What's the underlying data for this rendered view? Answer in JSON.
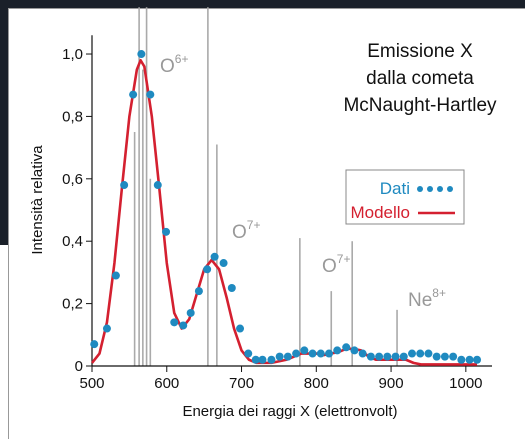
{
  "chart_data": {
    "type": "scatter-line",
    "title": [
      "Emissione X",
      "dalla cometa",
      "McNaught-Hartley"
    ],
    "xlabel": "Energia dei raggi X (elettronvolt)",
    "ylabel": "Intensità relativa",
    "xlim": [
      500,
      1035
    ],
    "ylim": [
      0,
      1.06
    ],
    "xticks": [
      500,
      600,
      700,
      800,
      900,
      1000
    ],
    "yticks": [
      0,
      {
        "value": 0.2,
        "label": "0,2"
      },
      {
        "value": 0.4,
        "label": "0,4"
      },
      {
        "value": 0.6,
        "label": "0,6"
      },
      {
        "value": 0.8,
        "label": "0,8"
      },
      {
        "value": 1.0,
        "label": "1,0"
      }
    ],
    "series": [
      {
        "name": "Dati",
        "kind": "dots",
        "color": "#1f8ac0",
        "x": [
          503,
          520,
          532,
          543,
          555,
          566,
          578,
          588,
          599,
          610,
          622,
          632,
          643,
          654,
          664,
          676,
          687,
          698,
          709,
          719,
          728,
          740,
          751,
          762,
          773,
          784,
          795,
          806,
          817,
          828,
          840,
          851,
          862,
          873,
          884,
          895,
          906,
          917,
          928,
          939,
          950,
          961,
          972,
          983,
          994,
          1005,
          1015
        ],
        "values": [
          0.07,
          0.12,
          0.29,
          0.58,
          0.87,
          1.0,
          0.87,
          0.58,
          0.43,
          0.14,
          0.13,
          0.17,
          0.24,
          0.31,
          0.35,
          0.33,
          0.25,
          0.12,
          0.04,
          0.02,
          0.02,
          0.02,
          0.03,
          0.03,
          0.04,
          0.05,
          0.04,
          0.04,
          0.04,
          0.05,
          0.06,
          0.05,
          0.04,
          0.03,
          0.03,
          0.03,
          0.03,
          0.03,
          0.04,
          0.04,
          0.04,
          0.03,
          0.03,
          0.03,
          0.02,
          0.02,
          0.02
        ]
      },
      {
        "name": "Modello",
        "kind": "line",
        "color": "#d42030",
        "x": [
          500,
          510,
          520,
          530,
          540,
          550,
          560,
          565,
          570,
          580,
          590,
          600,
          610,
          620,
          630,
          640,
          650,
          660,
          670,
          680,
          690,
          700,
          710,
          720,
          740,
          760,
          770,
          780,
          790,
          800,
          810,
          820,
          830,
          840,
          850,
          860,
          870,
          880,
          900,
          920,
          930,
          940,
          1015
        ],
        "values": [
          0.01,
          0.04,
          0.14,
          0.33,
          0.57,
          0.8,
          0.95,
          0.98,
          0.96,
          0.8,
          0.57,
          0.33,
          0.17,
          0.12,
          0.15,
          0.23,
          0.31,
          0.34,
          0.31,
          0.22,
          0.12,
          0.05,
          0.02,
          0.01,
          0.01,
          0.02,
          0.03,
          0.04,
          0.04,
          0.04,
          0.035,
          0.04,
          0.045,
          0.055,
          0.055,
          0.05,
          0.03,
          0.02,
          0.02,
          0.02,
          0.01,
          0.005,
          0.005
        ]
      },
      {
        "kind": "spikes",
        "color": "#aaaaaa",
        "x": [
          557,
          563,
          568,
          573,
          578,
          655,
          667,
          778,
          820,
          848,
          908
        ],
        "values": [
          0.75,
          1.15,
          0.95,
          1.15,
          0.6,
          1.15,
          0.71,
          0.41,
          0.24,
          0.4,
          0.18
        ]
      }
    ],
    "annotations": [
      {
        "text": "O",
        "sup": "6+"
      },
      {
        "text": "O",
        "sup": "7+"
      },
      {
        "text": "O",
        "sup": "7+"
      },
      {
        "text": "Ne",
        "sup": "8+"
      }
    ]
  }
}
